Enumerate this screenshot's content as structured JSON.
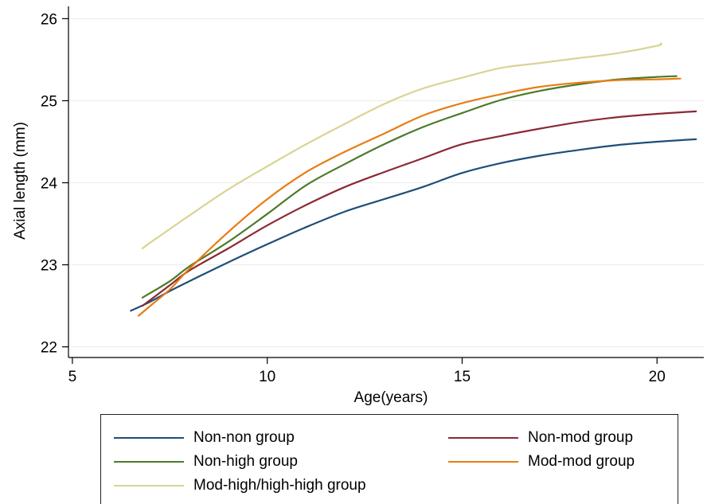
{
  "chart_data": {
    "type": "line",
    "title": "",
    "xlabel": "Age(years)",
    "ylabel": "Axial length (mm)",
    "xlim": [
      4.9,
      21.2
    ],
    "ylim": [
      21.87,
      26.15
    ],
    "xticks": [
      5,
      10,
      15,
      20
    ],
    "yticks": [
      22,
      23,
      24,
      25,
      26
    ],
    "grid": "horizontal",
    "legend_position": "bottom",
    "series": [
      {
        "name": "Non-non group",
        "color": "#1f4e79",
        "x": [
          6.5,
          7,
          7.5,
          8,
          9,
          10,
          11,
          12,
          13,
          14,
          15,
          16,
          17,
          18,
          19,
          20,
          21
        ],
        "y": [
          22.44,
          22.55,
          22.68,
          22.8,
          23.03,
          23.25,
          23.46,
          23.65,
          23.8,
          23.95,
          24.12,
          24.24,
          24.33,
          24.4,
          24.46,
          24.5,
          24.53
        ]
      },
      {
        "name": "Non-mod group",
        "color": "#8b2a33",
        "x": [
          6.8,
          7.5,
          8,
          9,
          10,
          11,
          12,
          13,
          14,
          15,
          16,
          17,
          18,
          19,
          20,
          21
        ],
        "y": [
          22.5,
          22.75,
          22.93,
          23.2,
          23.48,
          23.73,
          23.95,
          24.13,
          24.3,
          24.47,
          24.57,
          24.66,
          24.74,
          24.8,
          24.84,
          24.87
        ]
      },
      {
        "name": "Non-high group",
        "color": "#4d7a2a",
        "x": [
          6.8,
          7.5,
          8,
          9,
          10,
          11,
          12,
          13,
          14,
          15,
          16,
          17,
          18,
          19,
          20,
          20.5
        ],
        "y": [
          22.6,
          22.8,
          22.98,
          23.28,
          23.62,
          23.97,
          24.23,
          24.47,
          24.68,
          24.85,
          25.01,
          25.12,
          25.2,
          25.26,
          25.29,
          25.3
        ]
      },
      {
        "name": "Mod-mod group",
        "color": "#e87d12",
        "x": [
          6.7,
          7,
          7.5,
          8,
          9,
          10,
          11,
          12,
          13,
          14,
          15,
          16,
          17,
          18,
          19,
          20,
          20.6
        ],
        "y": [
          22.38,
          22.5,
          22.7,
          22.95,
          23.4,
          23.8,
          24.13,
          24.38,
          24.6,
          24.82,
          24.97,
          25.08,
          25.17,
          25.22,
          25.25,
          25.26,
          25.27
        ]
      },
      {
        "name": "Mod-high/high-high group",
        "color": "#d9d494",
        "x": [
          6.8,
          7,
          8,
          9,
          10,
          11,
          12,
          13,
          14,
          15,
          16,
          17,
          18,
          19,
          20,
          20.1
        ],
        "y": [
          23.2,
          23.27,
          23.6,
          23.92,
          24.2,
          24.47,
          24.72,
          24.96,
          25.15,
          25.28,
          25.4,
          25.46,
          25.52,
          25.58,
          25.67,
          25.7
        ]
      }
    ]
  }
}
